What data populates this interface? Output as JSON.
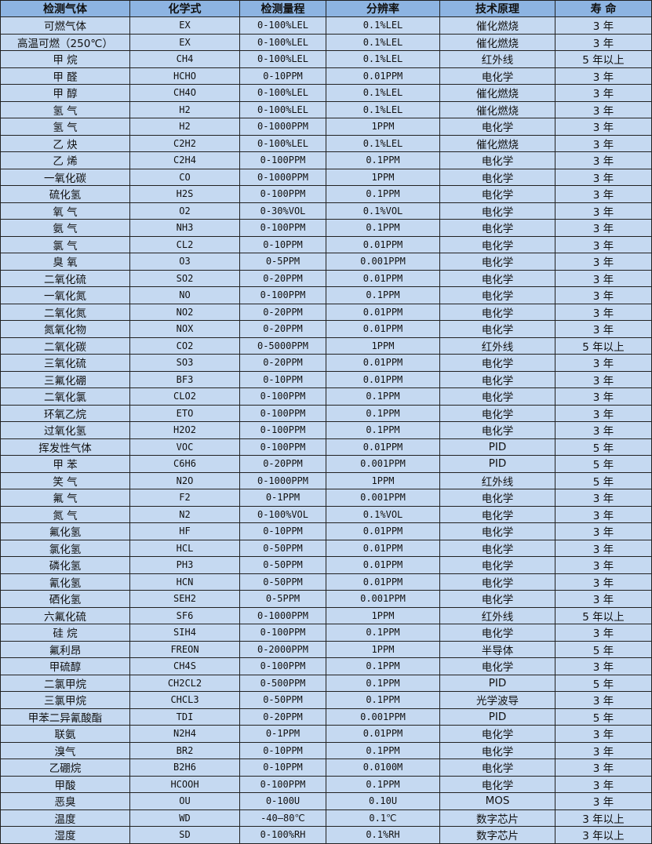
{
  "table": {
    "headers": [
      "检测气体",
      "化学式",
      "检测量程",
      "分辨率",
      "技术原理",
      "寿 命"
    ],
    "rows": [
      [
        "可燃气体",
        "EX",
        "0-100%LEL",
        "0.1%LEL",
        "催化燃烧",
        "3 年"
      ],
      [
        "高温可燃（250℃）",
        "EX",
        "0-100%LEL",
        "0.1%LEL",
        "催化燃烧",
        "3 年"
      ],
      [
        "甲 烷",
        "CH4",
        "0-100%LEL",
        "0.1%LEL",
        "红外线",
        "5 年以上"
      ],
      [
        "甲 醛",
        "HCHO",
        "0-10PPM",
        "0.01PPM",
        "电化学",
        "3 年"
      ],
      [
        "甲 醇",
        "CH4O",
        "0-100%LEL",
        "0.1%LEL",
        "催化燃烧",
        "3 年"
      ],
      [
        "氢 气",
        "H2",
        "0-100%LEL",
        "0.1%LEL",
        "催化燃烧",
        "3 年"
      ],
      [
        "氢 气",
        "H2",
        "0-1000PPM",
        "1PPM",
        "电化学",
        "3 年"
      ],
      [
        "乙 炔",
        "C2H2",
        "0-100%LEL",
        "0.1%LEL",
        "催化燃烧",
        "3 年"
      ],
      [
        "乙 烯",
        "C2H4",
        "0-100PPM",
        "0.1PPM",
        "电化学",
        "3 年"
      ],
      [
        "一氧化碳",
        "CO",
        "0-1000PPM",
        "1PPM",
        "电化学",
        "3 年"
      ],
      [
        "硫化氢",
        "H2S",
        "0-100PPM",
        "0.1PPM",
        "电化学",
        "3 年"
      ],
      [
        "氧 气",
        "O2",
        "0-30%VOL",
        "0.1%VOL",
        "电化学",
        "3 年"
      ],
      [
        "氨 气",
        "NH3",
        "0-100PPM",
        "0.1PPM",
        "电化学",
        "3 年"
      ],
      [
        "氯 气",
        "CL2",
        "0-10PPM",
        "0.01PPM",
        "电化学",
        "3 年"
      ],
      [
        "臭 氧",
        "O3",
        "0-5PPM",
        "0.001PPM",
        "电化学",
        "3 年"
      ],
      [
        "二氧化硫",
        "SO2",
        "0-20PPM",
        "0.01PPM",
        "电化学",
        "3 年"
      ],
      [
        "一氧化氮",
        "NO",
        "0-100PPM",
        "0.1PPM",
        "电化学",
        "3 年"
      ],
      [
        "二氧化氮",
        "NO2",
        "0-20PPM",
        "0.01PPM",
        "电化学",
        "3 年"
      ],
      [
        "氮氧化物",
        "NOX",
        "0-20PPM",
        "0.01PPM",
        "电化学",
        "3 年"
      ],
      [
        "二氧化碳",
        "CO2",
        "0-5000PPM",
        "1PPM",
        "红外线",
        "5 年以上"
      ],
      [
        "三氧化硫",
        "SO3",
        "0-20PPM",
        "0.01PPM",
        "电化学",
        "3 年"
      ],
      [
        "三氟化硼",
        "BF3",
        "0-10PPM",
        "0.01PPM",
        "电化学",
        "3 年"
      ],
      [
        "二氧化氯",
        "CLO2",
        "0-100PPM",
        "0.1PPM",
        "电化学",
        "3 年"
      ],
      [
        "环氧乙烷",
        "ETO",
        "0-100PPM",
        "0.1PPM",
        "电化学",
        "3 年"
      ],
      [
        "过氧化氢",
        "H2O2",
        "0-100PPM",
        "0.1PPM",
        "电化学",
        "3 年"
      ],
      [
        "挥发性气体",
        "VOC",
        "0-100PPM",
        "0.01PPM",
        "PID",
        "5 年"
      ],
      [
        "甲 苯",
        "C6H6",
        "0-20PPM",
        "0.001PPM",
        "PID",
        "5 年"
      ],
      [
        "笑 气",
        "N2O",
        "0-1000PPM",
        "1PPM",
        "红外线",
        "5 年"
      ],
      [
        "氟 气",
        "F2",
        "0-1PPM",
        "0.001PPM",
        "电化学",
        "3 年"
      ],
      [
        "氮 气",
        "N2",
        "0-100%VOL",
        "0.1%VOL",
        "电化学",
        "3 年"
      ],
      [
        "氟化氢",
        "HF",
        "0-10PPM",
        "0.01PPM",
        "电化学",
        "3 年"
      ],
      [
        "氯化氢",
        "HCL",
        "0-50PPM",
        "0.01PPM",
        "电化学",
        "3 年"
      ],
      [
        "磷化氢",
        "PH3",
        "0-50PPM",
        "0.01PPM",
        "电化学",
        "3 年"
      ],
      [
        "氰化氢",
        "HCN",
        "0-50PPM",
        "0.01PPM",
        "电化学",
        "3 年"
      ],
      [
        "硒化氢",
        "SEH2",
        "0-5PPM",
        "0.001PPM",
        "电化学",
        "3 年"
      ],
      [
        "六氟化硫",
        "SF6",
        "0-1000PPM",
        "1PPM",
        "红外线",
        "5 年以上"
      ],
      [
        "硅 烷",
        "SIH4",
        "0-100PPM",
        "0.1PPM",
        "电化学",
        "3 年"
      ],
      [
        "氟利昂",
        "FREON",
        "0-2000PPM",
        "1PPM",
        "半导体",
        "5 年"
      ],
      [
        "甲硫醇",
        "CH4S",
        "0-100PPM",
        "0.1PPM",
        "电化学",
        "3 年"
      ],
      [
        "二氯甲烷",
        "CH2CL2",
        "0-500PPM",
        "0.1PPM",
        "PID",
        "5 年"
      ],
      [
        "三氯甲烷",
        "CHCL3",
        "0-50PPM",
        "0.1PPM",
        "光学波导",
        "3 年"
      ],
      [
        "甲苯二异氰酸酯",
        "TDI",
        "0-20PPM",
        "0.001PPM",
        "PID",
        "5 年"
      ],
      [
        "联氨",
        "N2H4",
        "0-1PPM",
        "0.01PPM",
        "电化学",
        "3 年"
      ],
      [
        "溴气",
        "BR2",
        "0-10PPM",
        "0.1PPM",
        "电化学",
        "3 年"
      ],
      [
        "乙硼烷",
        "B2H6",
        "0-10PPM",
        "0.0100M",
        "电化学",
        "3 年"
      ],
      [
        "甲酸",
        "HCOOH",
        "0-100PPM",
        "0.1PPM",
        "电化学",
        "3 年"
      ],
      [
        "恶臭",
        "OU",
        "0-100U",
        "0.10U",
        "MOS",
        "3 年"
      ],
      [
        "温度",
        "WD",
        "-40—80℃",
        "0.1℃",
        "数字芯片",
        "3 年以上"
      ],
      [
        "湿度",
        "SD",
        "0-100%RH",
        "0.1%RH",
        "数字芯片",
        "3 年以上"
      ]
    ]
  },
  "colors": {
    "header_bg": "#8db4e2",
    "row_bg": "#c5d9f1",
    "border": "#222222"
  }
}
